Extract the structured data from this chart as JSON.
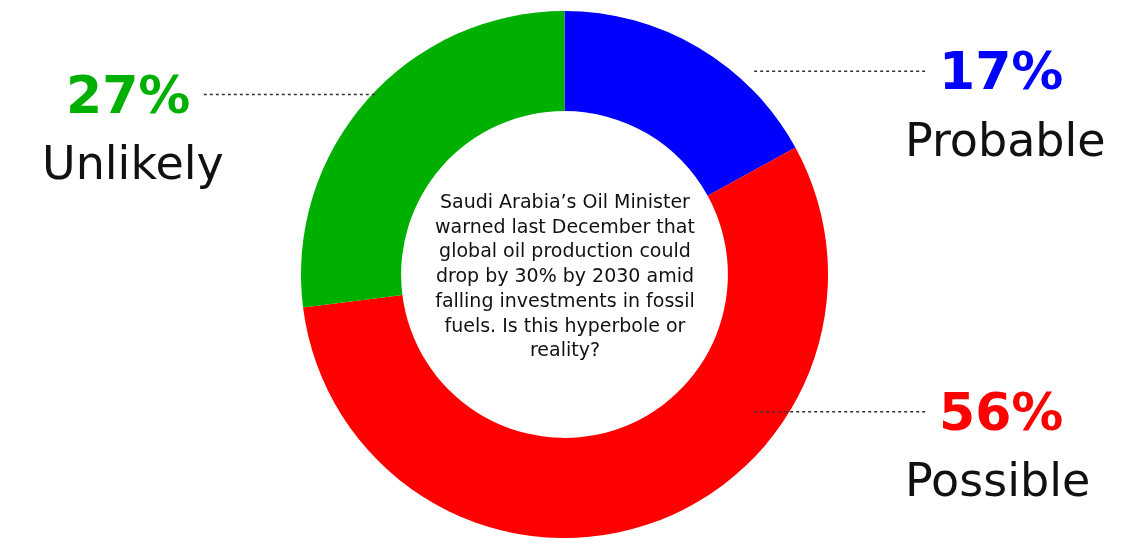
{
  "chart_data": {
    "type": "donut",
    "title": "Saudi Arabia’s Oil Minister warned last December that global oil production could drop by 30% by 2030 amid falling investments in fossil fuels. Is this hyperbole or reality?",
    "categories": [
      "Probable",
      "Possible",
      "Unlikely"
    ],
    "values": [
      17,
      56,
      27
    ],
    "colors": [
      "#0000ff",
      "#ff0000",
      "#00b000"
    ],
    "value_labels": [
      "17%",
      "56%",
      "27%"
    ],
    "legend": false
  }
}
